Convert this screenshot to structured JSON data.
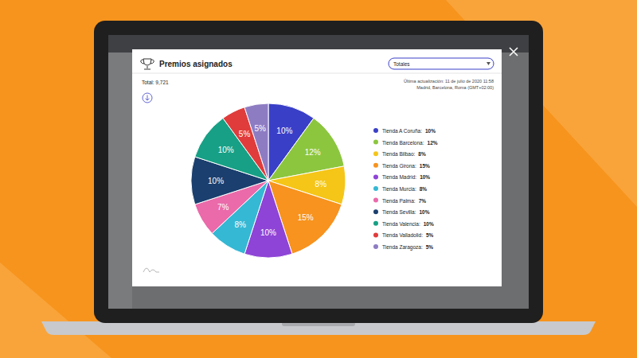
{
  "chart_data": {
    "type": "pie",
    "title": "Premios asignados",
    "annotations": [
      "Total: 9,721",
      "Totales",
      "Última actualización: 11 de julio de 2020 11:58",
      "Madrid, Barcelona, Roma (GMT+02:00)"
    ],
    "categories": [
      "Tienda A Coruña:",
      "Tienda Barcelona:",
      "Tienda Bilbao:",
      "Tienda Girona:",
      "Tienda Madrid:",
      "Tienda Murcia:",
      "Tienda Palma:",
      "Tienda Sevilla:",
      "Tienda Valencia:",
      "Tienda Valladolid:",
      "Tienda Zaragoza:"
    ],
    "values": [
      10,
      12,
      8,
      15,
      10,
      8,
      7,
      10,
      10,
      5,
      5
    ],
    "value_labels": [
      "10%",
      "12%",
      "8%",
      "15%",
      "10%",
      "8%",
      "7%",
      "10%",
      "10%",
      "5%",
      "5%"
    ],
    "colors": [
      "#3a3fc8",
      "#8cc63f",
      "#f5c518",
      "#f7931e",
      "#8e44d6",
      "#35b8d4",
      "#ea6aaa",
      "#1b3f6e",
      "#17a085",
      "#e03c3c",
      "#8e7cc3"
    ],
    "data_labels": true,
    "legend": "right"
  }
}
